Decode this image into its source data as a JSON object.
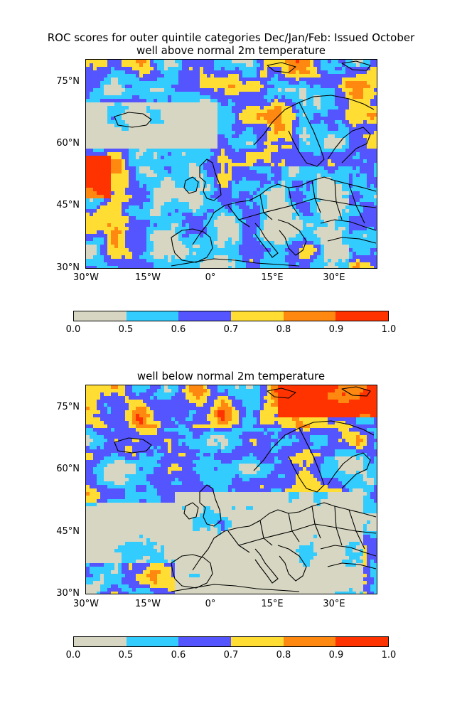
{
  "page_title": "ROC scores for outer quintile categories Dec/Jan/Feb: Issued October",
  "colors": {
    "land_bg": "#d6d6c2",
    "levels": [
      "#d6d6c2",
      "#33ccff",
      "#5555ff",
      "#ffdd33",
      "#ff8811",
      "#ff3300"
    ],
    "coastline": "#000000"
  },
  "panels": [
    {
      "subtitle": "well above normal 2m temperature",
      "lat_ticks": [
        "75°N",
        "60°N",
        "45°N",
        "30°N"
      ],
      "lon_ticks": [
        "30°W",
        "15°W",
        "0°",
        "15°E",
        "30°E"
      ],
      "colorbar_ticks": [
        "0.0",
        "0.5",
        "0.6",
        "0.7",
        "0.8",
        "0.9",
        "1.0"
      ]
    },
    {
      "subtitle": "well below normal 2m temperature",
      "lat_ticks": [
        "75°N",
        "60°N",
        "45°N",
        "30°N"
      ],
      "lon_ticks": [
        "30°W",
        "15°W",
        "0°",
        "15°E",
        "30°E"
      ],
      "colorbar_ticks": [
        "0.0",
        "0.5",
        "0.6",
        "0.7",
        "0.8",
        "0.9",
        "1.0"
      ]
    }
  ]
}
